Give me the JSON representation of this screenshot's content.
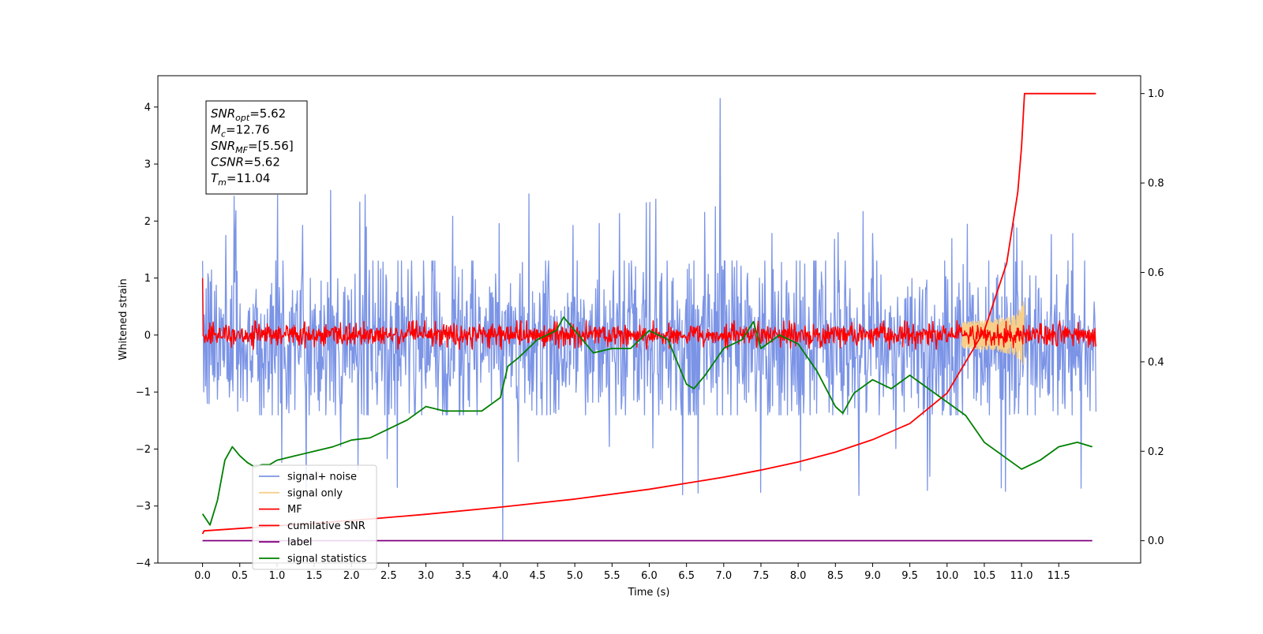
{
  "chart_data": {
    "type": "line",
    "title": "",
    "xlabel": "Time (s)",
    "ylabel": "Whitened strain",
    "xlim": [
      -0.6,
      12.6
    ],
    "ylim": [
      -4,
      4.55
    ],
    "y2lim": [
      -0.05,
      1.04
    ],
    "x_ticks": [
      "0.0",
      "0.5",
      "1.0",
      "1.5",
      "2.0",
      "2.5",
      "3.0",
      "3.5",
      "4.0",
      "4.5",
      "5.0",
      "5.5",
      "6.0",
      "6.5",
      "7.0",
      "7.5",
      "8.0",
      "8.5",
      "9.0",
      "9.5",
      "10.0",
      "10.5",
      "11.0",
      "11.5"
    ],
    "y_ticks": [
      "−4",
      "−3",
      "−2",
      "−1",
      "0",
      "1",
      "2",
      "3",
      "4"
    ],
    "y2_ticks": [
      "0.0",
      "0.2",
      "0.4",
      "0.6",
      "0.8",
      "1.0"
    ],
    "grid": false,
    "legend_position": "lower-left",
    "annotation_box": {
      "position": "upper-left",
      "lines": [
        {
          "sym": "SNR",
          "sub": "opt",
          "val": "=5.62"
        },
        {
          "sym": "M",
          "sub": "c",
          "val": "=12.76"
        },
        {
          "sym": "SNR",
          "sub": "MF",
          "val": "=[5.56]"
        },
        {
          "sym": "CSNR",
          "sub": "",
          "val": "=5.62"
        },
        {
          "sym": "T",
          "sub": "m",
          "val": "=11.04"
        }
      ]
    },
    "series": [
      {
        "name": "signal+ noise",
        "color": "#7b94e6",
        "axis": "left",
        "kind": "noise",
        "x_range": [
          0,
          12
        ],
        "center": -0.15,
        "spread": 0.75,
        "typical_range": [
          -1.4,
          1.3
        ],
        "extremes": {
          "max": 4.15,
          "max_at": 6.95,
          "min": -3.6,
          "min_at": 4.03
        }
      },
      {
        "name": "signal only",
        "color": "#f7cf8a",
        "axis": "left",
        "kind": "chirp",
        "x_range": [
          10.2,
          11.04
        ],
        "peak_amplitude": 0.9
      },
      {
        "name": "MF",
        "color": "#ff0000",
        "axis": "left",
        "kind": "noise",
        "x_range": [
          0,
          12
        ],
        "center": 0.0,
        "spread": 0.1,
        "typical_range": [
          -0.25,
          0.25
        ],
        "end_values": [
          1.0,
          -0.2
        ]
      },
      {
        "name": "cumilative SNR",
        "color": "#ff0000",
        "axis": "right",
        "kind": "curve",
        "x": [
          0,
          0.02,
          1,
          2,
          3,
          4,
          5,
          6,
          7,
          7.5,
          8,
          8.5,
          9,
          9.5,
          10,
          10.5,
          10.8,
          10.95,
          11.0,
          11.04,
          12.0
        ],
        "y": [
          0.015,
          0.022,
          0.033,
          0.045,
          0.059,
          0.075,
          0.093,
          0.115,
          0.142,
          0.158,
          0.176,
          0.198,
          0.226,
          0.262,
          0.33,
          0.47,
          0.62,
          0.78,
          0.88,
          1.0,
          1.0
        ]
      },
      {
        "name": "label",
        "color": "#800080",
        "axis": "right",
        "kind": "curve",
        "x": [
          0,
          11.95
        ],
        "y": [
          0.0,
          0.0
        ]
      },
      {
        "name": "signal statistics",
        "color": "#008000",
        "axis": "right",
        "kind": "curve",
        "x": [
          0,
          0.1,
          0.2,
          0.3,
          0.4,
          0.5,
          0.6,
          0.7,
          0.8,
          0.9,
          1.0,
          1.25,
          1.5,
          1.75,
          2.0,
          2.25,
          2.5,
          2.75,
          3.0,
          3.25,
          3.5,
          3.75,
          4.0,
          4.1,
          4.25,
          4.5,
          4.75,
          4.85,
          5.0,
          5.25,
          5.5,
          5.75,
          6.0,
          6.25,
          6.5,
          6.6,
          6.75,
          7.0,
          7.25,
          7.4,
          7.5,
          7.75,
          8.0,
          8.25,
          8.5,
          8.6,
          8.75,
          9.0,
          9.25,
          9.5,
          9.75,
          10.0,
          10.25,
          10.5,
          10.75,
          11.0,
          11.25,
          11.5,
          11.75,
          11.95
        ],
        "y": [
          0.06,
          0.035,
          0.09,
          0.18,
          0.21,
          0.19,
          0.175,
          0.165,
          0.17,
          0.17,
          0.18,
          0.19,
          0.2,
          0.21,
          0.225,
          0.23,
          0.25,
          0.27,
          0.3,
          0.29,
          0.29,
          0.29,
          0.32,
          0.39,
          0.41,
          0.45,
          0.47,
          0.5,
          0.47,
          0.42,
          0.43,
          0.43,
          0.47,
          0.45,
          0.35,
          0.34,
          0.37,
          0.43,
          0.45,
          0.49,
          0.43,
          0.46,
          0.44,
          0.38,
          0.3,
          0.285,
          0.33,
          0.36,
          0.34,
          0.37,
          0.34,
          0.31,
          0.28,
          0.22,
          0.19,
          0.16,
          0.18,
          0.21,
          0.22,
          0.21
        ]
      }
    ]
  }
}
